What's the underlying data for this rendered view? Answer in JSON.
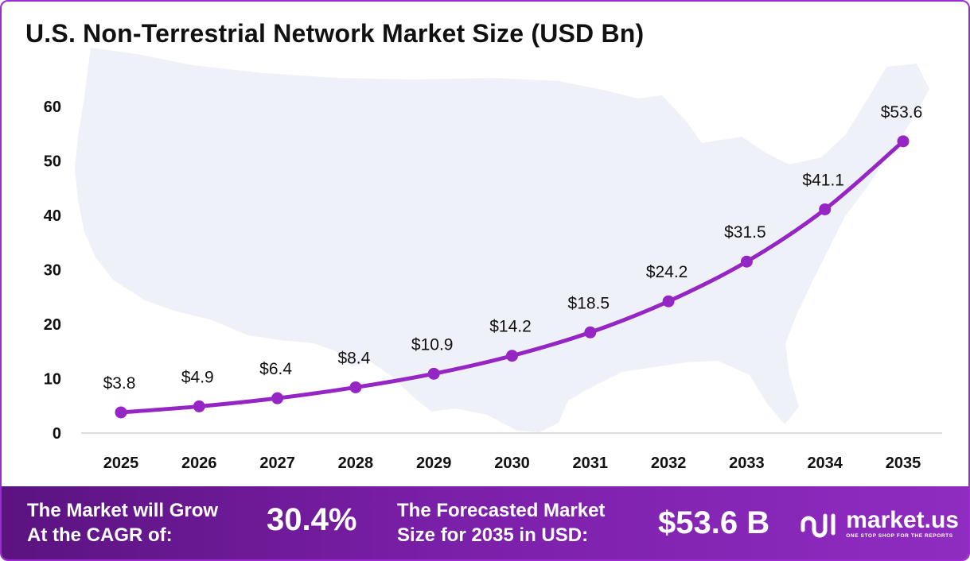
{
  "title": "U.S. Non-Terrestrial Network Market Size (USD Bn)",
  "chart_data": {
    "type": "line",
    "categories": [
      "2025",
      "2026",
      "2027",
      "2028",
      "2029",
      "2030",
      "2031",
      "2032",
      "2033",
      "2034",
      "2035"
    ],
    "values": [
      3.8,
      4.9,
      6.4,
      8.4,
      10.9,
      14.2,
      18.5,
      24.2,
      31.5,
      41.1,
      53.6
    ],
    "data_labels": [
      "$3.8",
      "$4.9",
      "$6.4",
      "$8.4",
      "$10.9",
      "$14.2",
      "$18.5",
      "$24.2",
      "$31.5",
      "$41.1",
      "$53.6"
    ],
    "yticks": [
      0,
      10,
      20,
      30,
      40,
      50,
      60
    ],
    "ylim": [
      0,
      60
    ],
    "xlabel": "",
    "ylabel": "",
    "grid": false,
    "line_color": "#9626c4",
    "background_image": "us-map-silhouette"
  },
  "footer": {
    "cagr_label_line1": "The Market will Grow",
    "cagr_label_line2": "At the CAGR of:",
    "cagr_value": "30.4%",
    "forecast_label_line1": "The Forecasted Market",
    "forecast_label_line2": "Size for 2035 in USD:",
    "forecast_value": "$53.6 B",
    "brand_name": "market.us",
    "brand_tagline": "ONE STOP SHOP FOR THE REPORTS"
  },
  "colors": {
    "accent": "#9626c4",
    "footer_start": "#5b1380",
    "footer_end": "#8f2cc1",
    "map_fill": "#eef1f8"
  }
}
